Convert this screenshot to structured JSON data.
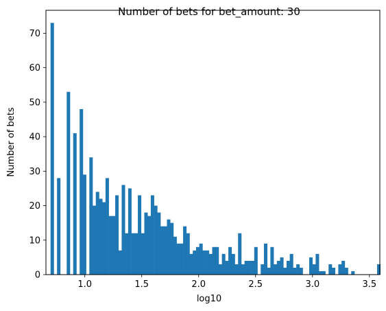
{
  "chart_data": {
    "type": "bar",
    "title": "Number of bets for bet_amount: 30",
    "xlabel": "log10",
    "ylabel": "Number of bets",
    "xlim": [
      0.6585,
      3.5915
    ],
    "ylim": [
      0,
      76.65
    ],
    "xticks": [
      1.0,
      1.5,
      2.0,
      2.5,
      3.0,
      3.5
    ],
    "xtick_labels": [
      "1.0",
      "1.5",
      "2.0",
      "2.5",
      "3.0",
      "3.5"
    ],
    "yticks": [
      0,
      10,
      20,
      30,
      40,
      50,
      60,
      70
    ],
    "ytick_labels": [
      "0",
      "10",
      "20",
      "30",
      "40",
      "50",
      "60",
      "70"
    ],
    "bar_color": "#1f77b4",
    "bin_start": 0.699,
    "bin_width": 0.0284,
    "values": [
      73,
      0,
      28,
      0,
      0,
      53,
      0,
      41,
      0,
      48,
      29,
      0,
      34,
      20,
      24,
      22,
      21,
      28,
      17,
      17,
      23,
      7,
      26,
      12,
      25,
      12,
      12,
      23,
      12,
      18,
      17,
      23,
      20,
      18,
      14,
      14,
      16,
      15,
      11,
      9,
      9,
      14,
      12,
      6,
      7,
      8,
      9,
      7,
      7,
      6,
      8,
      8,
      3,
      6,
      4,
      8,
      6,
      3,
      12,
      3,
      4,
      4,
      4,
      8,
      0,
      3,
      9,
      2,
      8,
      3,
      4,
      5,
      2,
      4,
      6,
      2,
      3,
      2,
      0,
      0,
      5,
      3,
      6,
      1,
      1,
      0,
      3,
      2,
      0,
      3,
      4,
      2,
      0,
      1,
      0,
      0,
      0,
      0,
      0,
      0,
      0,
      3,
      0,
      0,
      0,
      0,
      1
    ]
  }
}
